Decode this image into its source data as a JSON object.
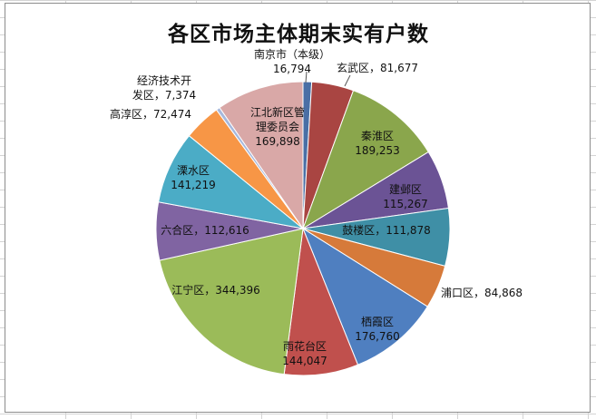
{
  "chart_data": {
    "type": "pie",
    "title": "各区市场主体期末实有户数",
    "legend": "none",
    "start_angle_deg": 0,
    "direction": "clockwise",
    "categories": [
      "南京市（本级）",
      "玄武区",
      "秦淮区",
      "建邺区",
      "鼓楼区",
      "浦口区",
      "栖霞区",
      "雨花台区",
      "江宁区",
      "六合区",
      "溧水区",
      "高淳区",
      "经济技术开发区",
      "江北新区管理委员会"
    ],
    "values": [
      16794,
      81677,
      189253,
      115267,
      111878,
      84868,
      176760,
      144047,
      344396,
      112616,
      141219,
      72474,
      7374,
      169898
    ],
    "value_labels": [
      "16,794",
      "81,677",
      "189,253",
      "115,267",
      "111,878",
      "84,868",
      "176,760",
      "144,047",
      "344,396",
      "112,616",
      "141,219",
      "72,474",
      "7,374",
      "169,898"
    ],
    "colors": [
      "#4a6fa5",
      "#a94542",
      "#8aa64c",
      "#6b5395",
      "#3f8fa6",
      "#d67a3a",
      "#4f7fc0",
      "#c0504d",
      "#9bbb59",
      "#8064a2",
      "#4bacc6",
      "#f79646",
      "#a6b8dc",
      "#d9a8a7"
    ],
    "label_lines": [
      [
        "南京市（本级）",
        "16,794"
      ],
      [
        "玄武区，81,677"
      ],
      [
        "秦淮区",
        "189,253"
      ],
      [
        "建邺区",
        "115,267"
      ],
      [
        "鼓楼区，111,878"
      ],
      [
        "浦口区，84,868"
      ],
      [
        "栖霞区",
        "176,760"
      ],
      [
        "雨花台区",
        "144,047"
      ],
      [
        "江宁区，344,396"
      ],
      [
        "六合区，112,616"
      ],
      [
        "溧水区",
        "141,219"
      ],
      [
        "高淳区，72,474"
      ],
      [
        "经济技术开",
        "发区，7,374"
      ],
      [
        "江北新区管",
        "理委员会",
        "169,898"
      ]
    ]
  }
}
